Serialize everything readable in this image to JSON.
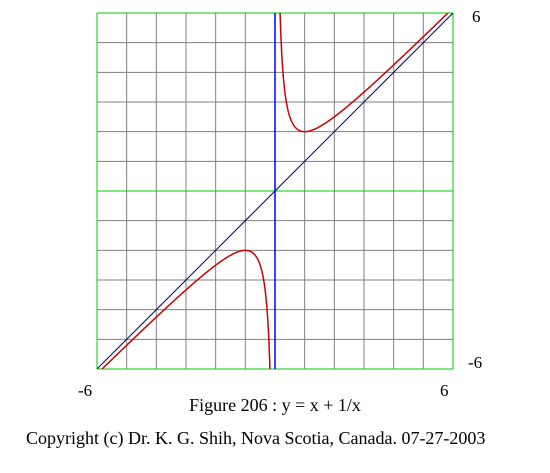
{
  "chart_data": {
    "type": "line",
    "title": "Figure 206 : y = x + 1/x",
    "xlim": [
      -6,
      6
    ],
    "ylim": [
      -6,
      6
    ],
    "grid": true,
    "tick_labels": {
      "x_min": "-6",
      "x_max": "6",
      "y_min": "-6",
      "y_max": "6"
    },
    "series": [
      {
        "function": "x + 1/x",
        "color": "#cc0000"
      },
      {
        "function": "x",
        "color": "#000080"
      },
      {
        "vertical_asymptote_x": 0,
        "color": "#0000ff"
      }
    ],
    "grid_color": "#808080",
    "major_grid_color": "#00cc00"
  },
  "copyright": "Copyright (c) Dr. K. G. Shih, Nova Scotia, Canada.  07-27-2003"
}
